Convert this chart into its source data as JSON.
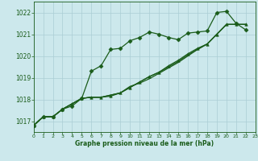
{
  "title": "Graphe pression niveau de la mer (hPa)",
  "bg_color": "#cce8ec",
  "grid_color": "#aacdd4",
  "line_color": "#1a5c1a",
  "xlim": [
    0,
    23
  ],
  "ylim": [
    1016.5,
    1022.5
  ],
  "yticks": [
    1017,
    1018,
    1019,
    1020,
    1021,
    1022
  ],
  "xticks": [
    0,
    1,
    2,
    3,
    4,
    5,
    6,
    7,
    8,
    9,
    10,
    11,
    12,
    13,
    14,
    15,
    16,
    17,
    18,
    19,
    20,
    21,
    22,
    23
  ],
  "series": [
    {
      "x": [
        0,
        1,
        2,
        3,
        4,
        5,
        6,
        7,
        8,
        9,
        10,
        11,
        12,
        13,
        14,
        15,
        16,
        17,
        18,
        19,
        20,
        21,
        22
      ],
      "y": [
        1016.8,
        1017.2,
        1017.2,
        1017.55,
        1017.7,
        1018.05,
        1019.3,
        1019.55,
        1020.3,
        1020.35,
        1020.7,
        1020.85,
        1021.1,
        1021.0,
        1020.85,
        1020.75,
        1021.05,
        1021.1,
        1021.15,
        1022.0,
        1022.05,
        1021.5,
        1021.2
      ],
      "marker": "D",
      "markersize": 2.5,
      "lw": 0.9
    },
    {
      "x": [
        0,
        1,
        2,
        3,
        4,
        5,
        6,
        7,
        8,
        9,
        10,
        11,
        12,
        13,
        14,
        15,
        16,
        17,
        18,
        19,
        20,
        21,
        22
      ],
      "y": [
        1016.8,
        1017.2,
        1017.2,
        1017.55,
        1017.8,
        1018.05,
        1018.1,
        1018.1,
        1018.15,
        1018.3,
        1018.55,
        1018.8,
        1019.05,
        1019.25,
        1019.55,
        1019.8,
        1020.1,
        1020.35,
        1020.55,
        1021.0,
        1021.45,
        1021.45,
        1021.45
      ],
      "marker": "^",
      "markersize": 2.5,
      "lw": 0.9
    },
    {
      "x": [
        0,
        1,
        2,
        3,
        4,
        5,
        6,
        7,
        8,
        9,
        10,
        11,
        12,
        13,
        14,
        15,
        16,
        17,
        18,
        19,
        20,
        21,
        22
      ],
      "y": [
        1016.8,
        1017.2,
        1017.2,
        1017.55,
        1017.8,
        1018.05,
        1018.1,
        1018.1,
        1018.2,
        1018.3,
        1018.6,
        1018.75,
        1018.95,
        1019.2,
        1019.45,
        1019.7,
        1020.0,
        1020.3,
        1020.55,
        1021.0,
        1021.45,
        1021.45,
        1021.45
      ],
      "marker": null,
      "markersize": 0,
      "lw": 0.9
    },
    {
      "x": [
        0,
        1,
        2,
        3,
        4,
        5,
        6,
        7,
        8,
        9,
        10,
        11,
        12,
        13,
        14,
        15,
        16,
        17,
        18,
        19,
        20,
        21,
        22
      ],
      "y": [
        1016.8,
        1017.2,
        1017.2,
        1017.55,
        1017.8,
        1018.05,
        1018.1,
        1018.1,
        1018.2,
        1018.3,
        1018.55,
        1018.8,
        1019.05,
        1019.25,
        1019.5,
        1019.75,
        1020.05,
        1020.3,
        1020.55,
        1021.0,
        1021.45,
        1021.45,
        1021.45
      ],
      "marker": null,
      "markersize": 0,
      "lw": 0.9
    }
  ]
}
